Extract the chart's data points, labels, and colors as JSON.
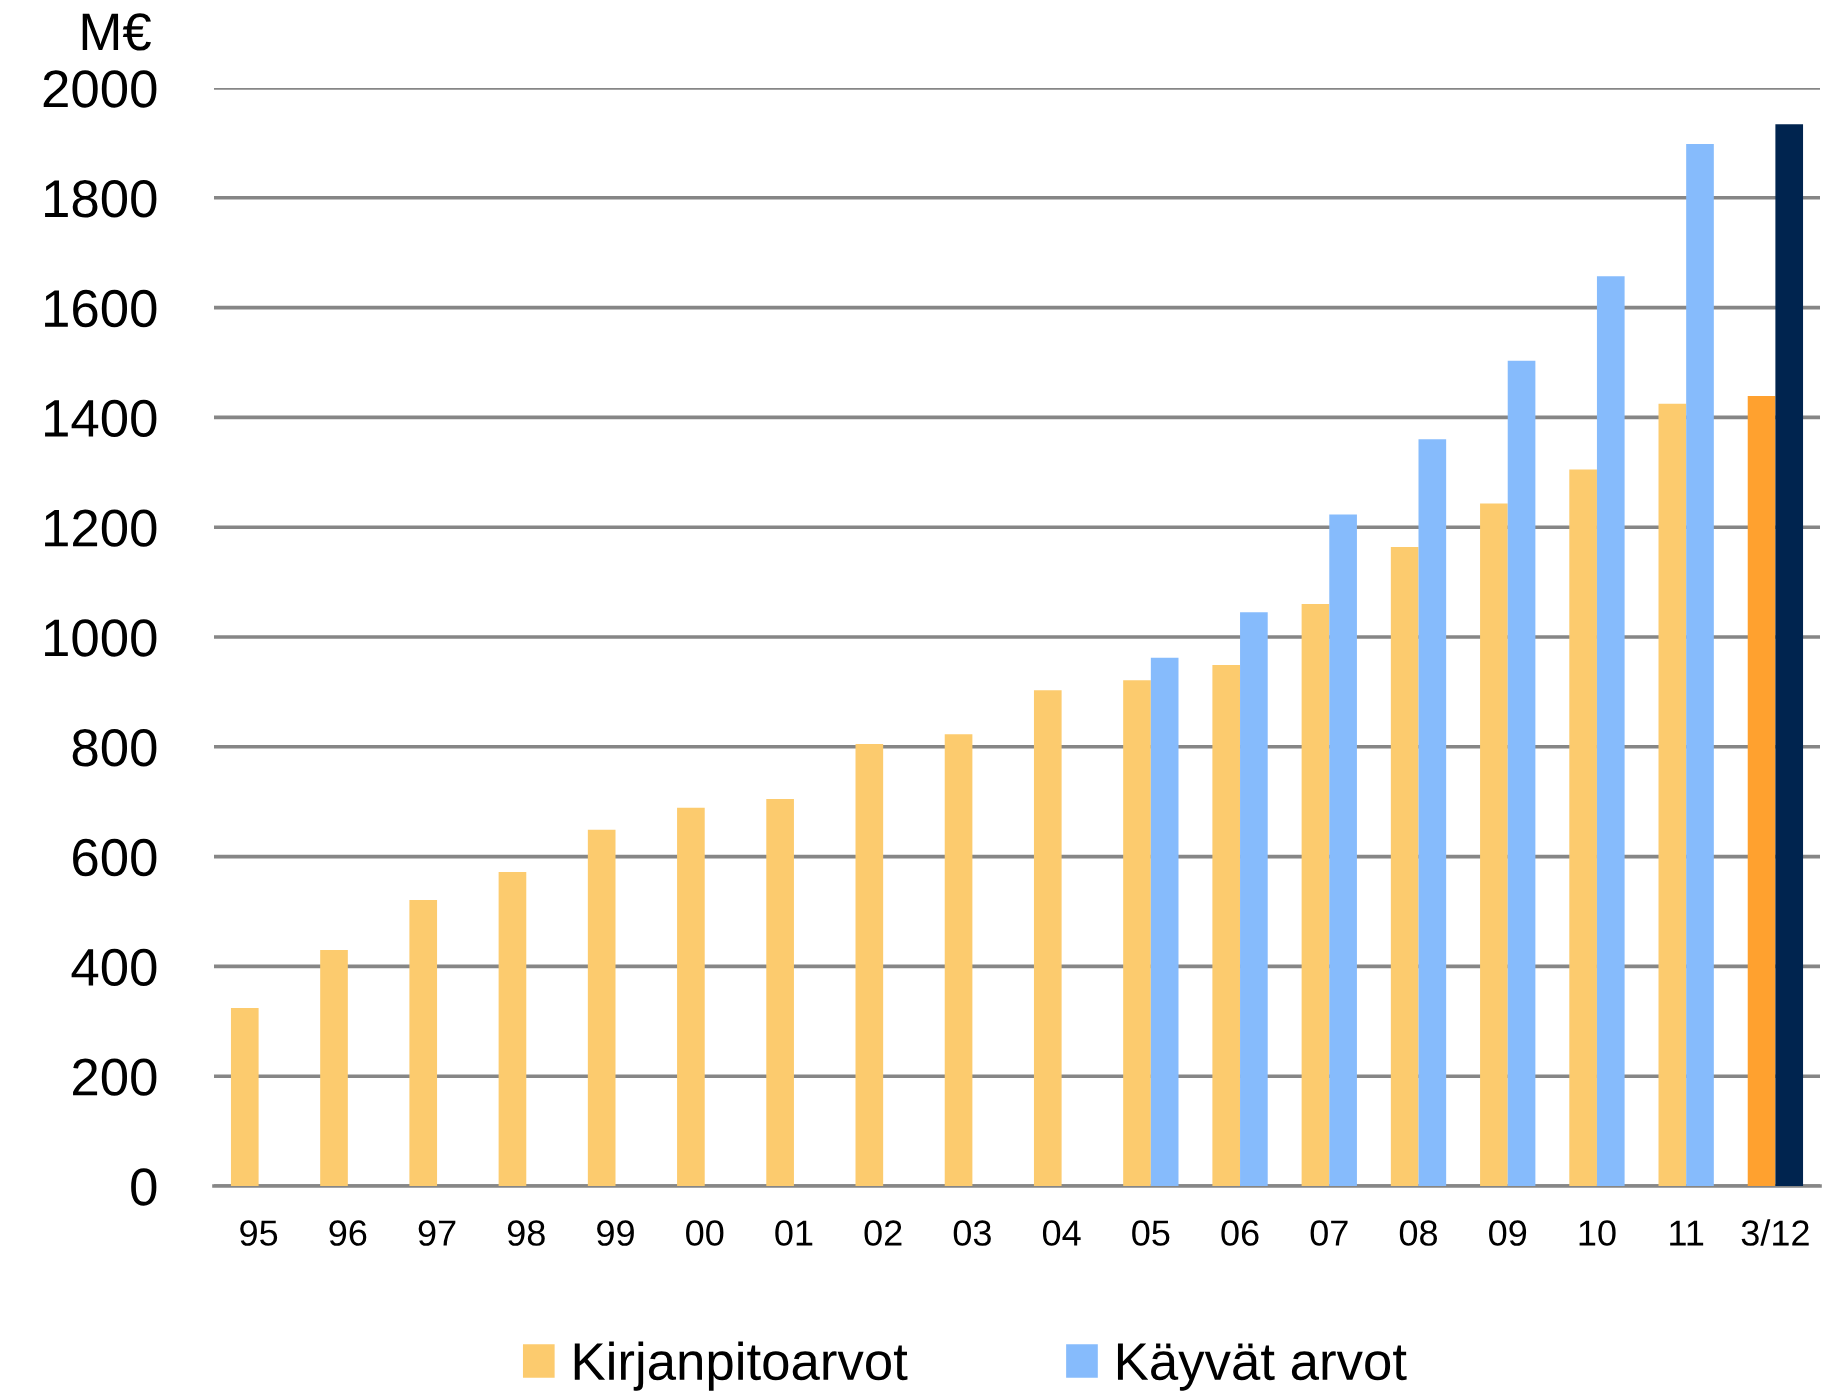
{
  "chart_data": {
    "type": "bar",
    "ylabel": "M€",
    "categories": [
      "95",
      "96",
      "97",
      "98",
      "99",
      "00",
      "01",
      "02",
      "03",
      "04",
      "05",
      "06",
      "07",
      "08",
      "09",
      "10",
      "11",
      "3/12"
    ],
    "series": [
      {
        "name": "Kirjanpitoarvot",
        "color": "#fccb6e",
        "colors": [
          "#fccb6e",
          "#fccb6e",
          "#fccb6e",
          "#fccb6e",
          "#fccb6e",
          "#fccb6e",
          "#fccb6e",
          "#fccb6e",
          "#fccb6e",
          "#fccb6e",
          "#fccb6e",
          "#fccb6e",
          "#fccb6e",
          "#fccb6e",
          "#fccb6e",
          "#fccb6e",
          "#fccb6e",
          "#ffa12f"
        ],
        "values": [
          324,
          430,
          521,
          572,
          649,
          689,
          705,
          805,
          823,
          903,
          921,
          949,
          1060,
          1164,
          1243,
          1305,
          1425,
          1439
        ]
      },
      {
        "name": "Käyvät arvot",
        "color": "#86bbfc",
        "colors": [
          "#86bbfc",
          "#86bbfc",
          "#86bbfc",
          "#86bbfc",
          "#86bbfc",
          "#86bbfc",
          "#86bbfc",
          "#86bbfc",
          "#86bbfc",
          "#86bbfc",
          "#86bbfc",
          "#86bbfc",
          "#86bbfc",
          "#86bbfc",
          "#86bbfc",
          "#86bbfc",
          "#86bbfc",
          "#00244f"
        ],
        "values": [
          null,
          null,
          null,
          null,
          null,
          null,
          null,
          null,
          null,
          null,
          962,
          1045,
          1223,
          1360,
          1503,
          1657,
          1898,
          1934
        ]
      }
    ],
    "ylim": [
      0,
      2000
    ],
    "yticks": [
      0,
      200,
      400,
      600,
      800,
      1000,
      1200,
      1400,
      1600,
      1800,
      2000
    ],
    "grid": "y",
    "legend": "bottom"
  }
}
